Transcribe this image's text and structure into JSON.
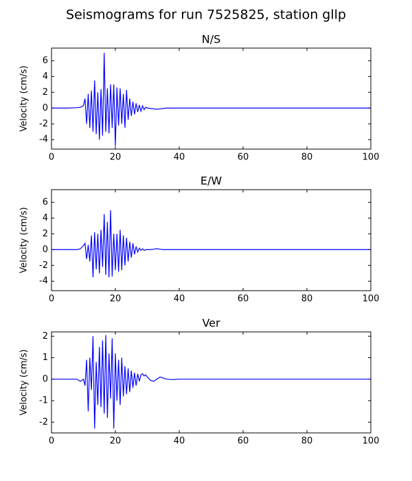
{
  "title": "Seismograms for run 7525825, station gllp",
  "chart_data": [
    {
      "type": "line",
      "title": "N/S",
      "ylabel": "Velocity (cm/s)",
      "x": [
        0,
        5,
        8,
        9,
        10,
        10.5,
        11,
        11.5,
        12,
        12.5,
        13,
        13.5,
        14,
        14.5,
        15,
        15.5,
        16,
        16.5,
        17,
        17.5,
        18,
        18.5,
        19,
        19.5,
        20,
        20.5,
        21,
        21.5,
        22,
        22.5,
        23,
        23.5,
        24,
        24.5,
        25,
        25.5,
        26,
        26.5,
        27,
        27.5,
        28,
        28.5,
        29,
        29.5,
        30,
        31,
        32,
        33,
        34,
        35,
        36,
        38,
        40,
        50,
        60,
        70,
        80,
        90,
        100
      ],
      "series": [
        {
          "color": "#0000ff",
          "values": [
            0,
            0,
            0.05,
            0.1,
            0.3,
            1.2,
            -2.0,
            1.8,
            -2.5,
            2.2,
            -3.0,
            3.5,
            -3.3,
            2.0,
            -4.0,
            2.4,
            -3.5,
            7.0,
            -3.0,
            2.5,
            -3.2,
            3.0,
            -2.5,
            3.0,
            -4.8,
            2.6,
            -2.2,
            2.5,
            -2.0,
            1.8,
            -2.5,
            2.3,
            -1.5,
            1.2,
            -1.0,
            0.8,
            -0.8,
            0.6,
            -0.5,
            0.4,
            -0.4,
            0.3,
            -0.2,
            0.1,
            0,
            -0.05,
            -0.1,
            -0.15,
            -0.1,
            -0.05,
            0,
            0,
            0,
            0,
            0,
            0,
            0,
            0,
            0
          ]
        }
      ],
      "xlim": [
        0,
        100
      ],
      "xticks": [
        0,
        20,
        40,
        60,
        80,
        100
      ],
      "ylim": [
        -5.2,
        7.6
      ],
      "yticks": [
        -4,
        -2,
        0,
        2,
        4,
        6
      ]
    },
    {
      "type": "line",
      "title": "E/W",
      "ylabel": "Velocity (cm/s)",
      "x": [
        0,
        5,
        8,
        9,
        10,
        10.5,
        11,
        11.5,
        12,
        12.5,
        13,
        13.5,
        14,
        14.5,
        15,
        15.5,
        16,
        16.5,
        17,
        17.5,
        18,
        18.5,
        19,
        19.5,
        20,
        20.5,
        21,
        21.5,
        22,
        22.5,
        23,
        23.5,
        24,
        24.5,
        25,
        25.5,
        26,
        26.5,
        27,
        27.5,
        28,
        28.5,
        29,
        29.5,
        30,
        31,
        32,
        33,
        34,
        35,
        36,
        38,
        40,
        50,
        60,
        70,
        80,
        90,
        100
      ],
      "series": [
        {
          "color": "#0000ff",
          "values": [
            0,
            0,
            0,
            0.1,
            0.5,
            0.8,
            -1.2,
            0.6,
            -1.5,
            1.8,
            -3.5,
            2.2,
            -2.5,
            2.0,
            -3.0,
            2.5,
            -2.2,
            4.5,
            -3.2,
            3.5,
            -3.5,
            5.0,
            -3.4,
            2.0,
            -2.6,
            2.0,
            -2.8,
            2.5,
            -2.6,
            1.8,
            -2.0,
            1.5,
            -1.5,
            1.0,
            -1.0,
            0.8,
            -0.6,
            0.4,
            -0.3,
            0.2,
            -0.1,
            0.1,
            -0.1,
            0,
            0,
            0,
            0.05,
            0.12,
            0.05,
            0,
            0,
            0,
            0,
            0,
            0,
            0,
            0,
            0,
            0
          ]
        }
      ],
      "xlim": [
        0,
        100
      ],
      "xticks": [
        0,
        20,
        40,
        60,
        80,
        100
      ],
      "ylim": [
        -5.2,
        7.6
      ],
      "yticks": [
        -4,
        -2,
        0,
        2,
        4,
        6
      ]
    },
    {
      "type": "line",
      "title": "Ver",
      "ylabel": "Velocity (cm/s)",
      "x": [
        0,
        5,
        8,
        9,
        10,
        10.5,
        11,
        11.5,
        12,
        12.5,
        13,
        13.5,
        14,
        14.5,
        15,
        15.5,
        16,
        16.5,
        17,
        17.5,
        18,
        18.5,
        19,
        19.5,
        20,
        20.5,
        21,
        21.5,
        22,
        22.5,
        23,
        23.5,
        24,
        24.5,
        25,
        25.5,
        26,
        26.5,
        27,
        27.5,
        28,
        28.5,
        29,
        29.5,
        30,
        31,
        32,
        33,
        34,
        35,
        36,
        38,
        40,
        50,
        60,
        70,
        80,
        90,
        100
      ],
      "series": [
        {
          "color": "#0000ff",
          "values": [
            0,
            0,
            0,
            -0.1,
            0,
            -0.3,
            0.9,
            -1.5,
            1.0,
            -0.5,
            2.0,
            -2.3,
            0.8,
            -1.2,
            1.5,
            -1.3,
            1.8,
            -1.6,
            2.05,
            -1.8,
            1.2,
            -0.9,
            1.9,
            -2.3,
            1.2,
            -1.0,
            0.9,
            -1.2,
            1.0,
            -0.8,
            0.6,
            -0.7,
            0.5,
            -0.6,
            0.4,
            -0.4,
            0.3,
            -0.3,
            0.25,
            -0.1,
            0.2,
            0.25,
            0.15,
            0.2,
            0.1,
            -0.05,
            -0.1,
            0,
            0.1,
            0.05,
            0,
            -0.02,
            0,
            0,
            0,
            0,
            0,
            0,
            0
          ]
        }
      ],
      "xlim": [
        0,
        100
      ],
      "xticks": [
        0,
        20,
        40,
        60,
        80,
        100
      ],
      "ylim": [
        -2.5,
        2.2
      ],
      "yticks": [
        -2,
        -1,
        0,
        1,
        2
      ]
    }
  ]
}
